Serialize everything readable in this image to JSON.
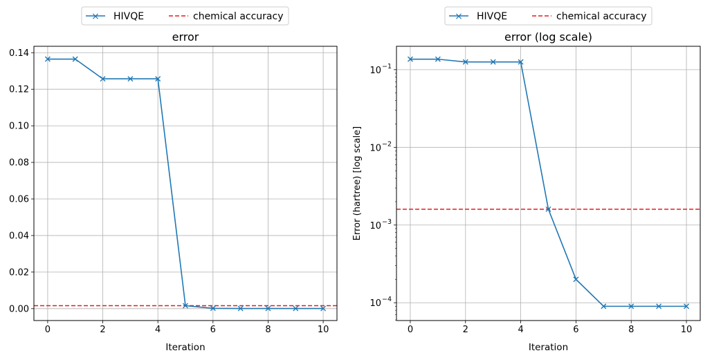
{
  "chart_data": [
    {
      "type": "line",
      "title": "error",
      "xlabel": "Iteration",
      "ylabel": "",
      "yscale": "linear",
      "xlim": [
        -0.5,
        10.5
      ],
      "ylim": [
        -0.0065,
        0.1435
      ],
      "x_ticks": [
        0,
        2,
        4,
        6,
        8,
        10
      ],
      "x_tick_labels": [
        "0",
        "2",
        "4",
        "6",
        "8",
        "10"
      ],
      "y_ticks": [
        0.0,
        0.02,
        0.04,
        0.06,
        0.08,
        0.1,
        0.12,
        0.14
      ],
      "y_tick_labels": [
        "0.00",
        "0.02",
        "0.04",
        "0.06",
        "0.08",
        "0.10",
        "0.12",
        "0.14"
      ],
      "grid": true,
      "legend_placement": "top-center-outside",
      "series": [
        {
          "name": "HIVQE",
          "color": "#1f77b4",
          "marker": "x",
          "x": [
            0,
            1,
            2,
            3,
            4,
            5,
            6,
            7,
            8,
            9,
            10
          ],
          "y": [
            0.1365,
            0.1365,
            0.1257,
            0.1257,
            0.1257,
            0.0016,
            0.0002,
            9e-05,
            9e-05,
            9e-05,
            9e-05
          ]
        }
      ],
      "hlines": [
        {
          "name": "chemical accuracy",
          "y": 0.0016,
          "color": "#e41a1c",
          "style": "dashed"
        }
      ]
    },
    {
      "type": "line",
      "title": "error (log scale)",
      "xlabel": "Iteration",
      "ylabel": "Error (hartree) [log scale]",
      "yscale": "log",
      "xlim": [
        -0.5,
        10.5
      ],
      "ylim": [
        5.9e-05,
        0.2
      ],
      "x_ticks": [
        0,
        2,
        4,
        6,
        8,
        10
      ],
      "x_tick_labels": [
        "0",
        "2",
        "4",
        "6",
        "8",
        "10"
      ],
      "y_ticks": [
        0.0001,
        0.001,
        0.01,
        0.1
      ],
      "y_tick_labels": [
        {
          "base": "10",
          "exp": "−4"
        },
        {
          "base": "10",
          "exp": "−3"
        },
        {
          "base": "10",
          "exp": "−2"
        },
        {
          "base": "10",
          "exp": "−1"
        }
      ],
      "grid": true,
      "legend_placement": "top-center-outside",
      "series": [
        {
          "name": "HIVQE",
          "color": "#1f77b4",
          "marker": "x",
          "x": [
            0,
            1,
            2,
            3,
            4,
            5,
            6,
            7,
            8,
            9,
            10
          ],
          "y": [
            0.1365,
            0.1365,
            0.1257,
            0.1257,
            0.1257,
            0.0016,
            0.0002,
            9e-05,
            9e-05,
            9e-05,
            9e-05
          ]
        }
      ],
      "hlines": [
        {
          "name": "chemical accuracy",
          "y": 0.0016,
          "color": "#e41a1c",
          "style": "dashed"
        }
      ]
    }
  ]
}
